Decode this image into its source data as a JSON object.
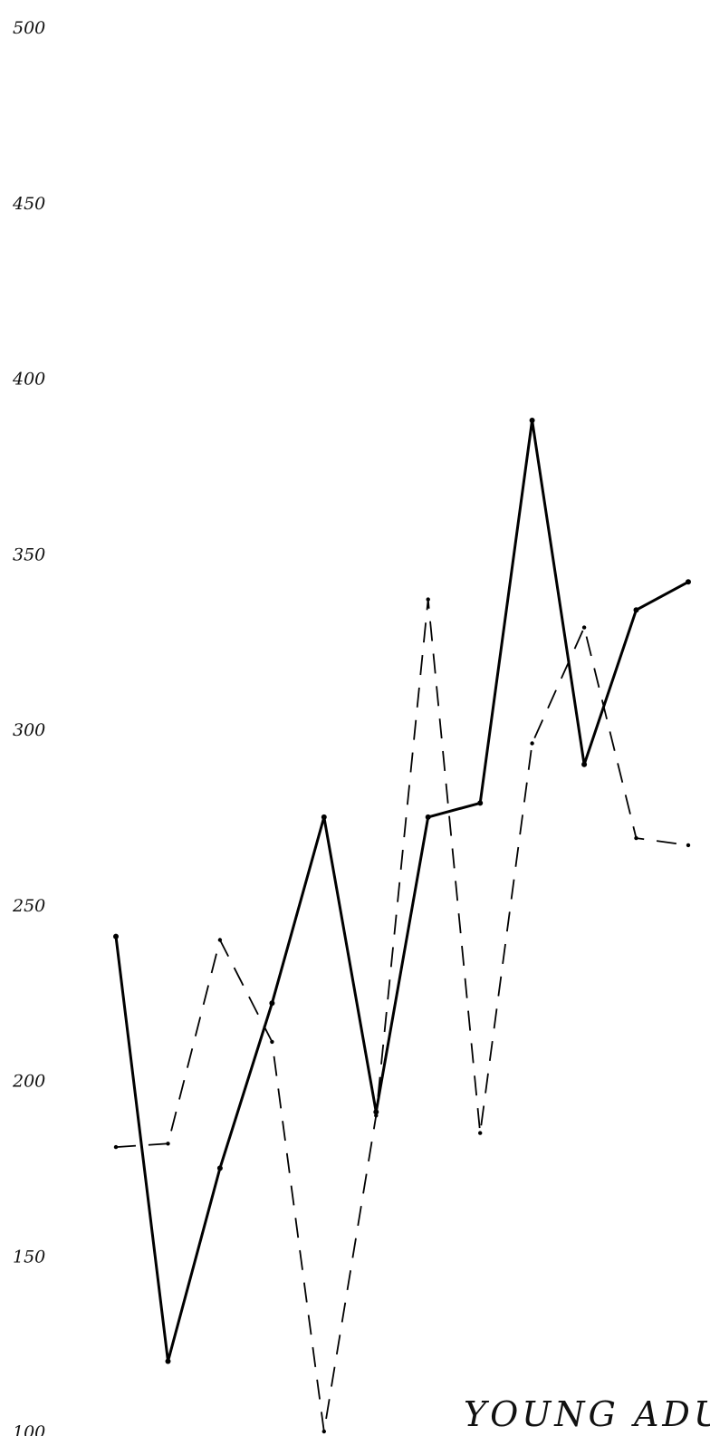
{
  "chart_data": {
    "type": "line",
    "title": "",
    "xlabel": "",
    "ylabel": "",
    "ylim": [
      100,
      500
    ],
    "yticks": [
      100,
      150,
      200,
      250,
      300,
      350,
      400,
      450,
      500
    ],
    "grid": false,
    "annotations": [
      {
        "text": "YOUNG ADULT",
        "at_x": 12.8,
        "at_y": 101
      }
    ],
    "x": [
      1,
      2,
      3,
      4,
      5,
      6,
      7,
      8,
      9,
      10,
      11,
      12
    ],
    "series": [
      {
        "style": "solid",
        "values": [
          241,
          120,
          175,
          222,
          275,
          191,
          275,
          279,
          388,
          290,
          334,
          342
        ]
      },
      {
        "style": "dashed",
        "values": [
          181,
          182,
          240,
          211,
          100,
          190,
          337,
          185,
          296,
          329,
          269,
          267
        ]
      }
    ]
  }
}
